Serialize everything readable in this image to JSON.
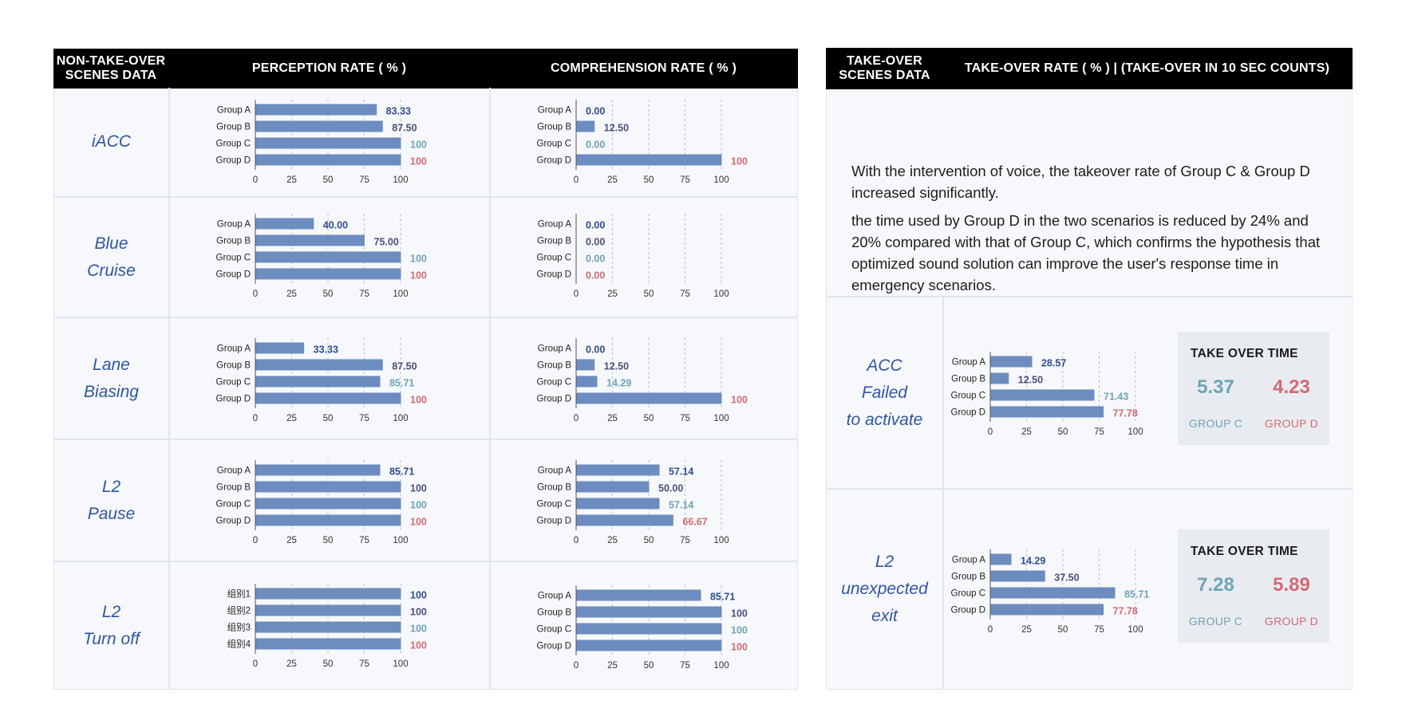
{
  "colors": {
    "bar": "#6d8cc0",
    "group_a_label": "#2f4c8c",
    "group_b_label": "#4a4e7a",
    "group_c_label": "#6fa3b5",
    "group_d_label": "#d36a73",
    "row_label": "#2f55a4",
    "header_bg": "#000000",
    "panel_bg": "#f6f8fb"
  },
  "left_header": {
    "scenes_label": "NON-TAKE-OVER\nSCENES DATA",
    "perception_label": "PERCEPTION RATE ( % )",
    "comprehension_label": "COMPREHENSION RATE ( % )"
  },
  "right_header": {
    "scenes_label": "TAKE-OVER\nSCENES DATA",
    "takeover_label": "TAKE-OVER RATE ( % ) | (TAKE-OVER IN 10 SEC COUNTS)"
  },
  "rows": [
    {
      "label_lines": [
        "iACC"
      ]
    },
    {
      "label_lines": [
        "Blue",
        "Cruise"
      ]
    },
    {
      "label_lines": [
        "Lane",
        "Biasing"
      ]
    },
    {
      "label_lines": [
        "L2",
        "Pause"
      ]
    },
    {
      "label_lines": [
        "L2",
        "Turn off"
      ]
    }
  ],
  "takeover_rows": [
    {
      "label_lines": [
        "ACC",
        "Failed",
        "to activate"
      ],
      "take_over_time": {
        "title": "TAKE OVER TIME",
        "group_c_value": "5.37",
        "group_d_value": "4.23",
        "group_c_label": "GROUP C",
        "group_d_label": "GROUP D"
      }
    },
    {
      "label_lines": [
        "L2",
        "unexpected",
        "exit"
      ],
      "take_over_time": {
        "title": "TAKE OVER TIME",
        "group_c_value": "7.28",
        "group_d_value": "5.89",
        "group_c_label": "GROUP C",
        "group_d_label": "GROUP D"
      }
    }
  ],
  "note": {
    "paragraph_1": "With the intervention of voice, the takeover rate of Group C & Group D increased significantly.",
    "paragraph_2": "the time used by Group D in the two scenarios is reduced by 24% and 20% compared with that of Group C, which confirms the hypothesis that optimized sound solution can improve the user's response time in emergency scenarios."
  },
  "chart_data": [
    {
      "id": "perception_iacc",
      "type": "bar",
      "orientation": "horizontal",
      "categories": [
        "Group A",
        "Group B",
        "Group C",
        "Group D"
      ],
      "values": [
        83.33,
        87.5,
        100,
        100
      ],
      "value_labels": [
        "83.33",
        "87.50",
        "100",
        "100"
      ],
      "xlim": [
        0,
        100
      ],
      "xticks": [
        "0",
        "25",
        "50",
        "75",
        "100"
      ],
      "grid": true
    },
    {
      "id": "comprehension_iacc",
      "type": "bar",
      "orientation": "horizontal",
      "categories": [
        "Group A",
        "Group B",
        "Group C",
        "Group D"
      ],
      "values": [
        0,
        12.5,
        0,
        100
      ],
      "value_labels": [
        "0.00",
        "12.50",
        "0.00",
        "100"
      ],
      "xlim": [
        0,
        100
      ],
      "xticks": [
        "0",
        "25",
        "50",
        "75",
        "100"
      ],
      "grid": true
    },
    {
      "id": "perception_blue_cruise",
      "type": "bar",
      "orientation": "horizontal",
      "categories": [
        "Group A",
        "Group B",
        "Group C",
        "Group D"
      ],
      "values": [
        40,
        75,
        100,
        100
      ],
      "value_labels": [
        "40.00",
        "75.00",
        "100",
        "100"
      ],
      "xlim": [
        0,
        100
      ],
      "xticks": [
        "0",
        "25",
        "50",
        "75",
        "100"
      ],
      "grid": true
    },
    {
      "id": "comprehension_blue_cruise",
      "type": "bar",
      "orientation": "horizontal",
      "categories": [
        "Group A",
        "Group B",
        "Group C",
        "Group D"
      ],
      "values": [
        0,
        0,
        0,
        0
      ],
      "value_labels": [
        "0.00",
        "0.00",
        "0.00",
        "0.00"
      ],
      "xlim": [
        0,
        100
      ],
      "xticks": [
        "0",
        "25",
        "50",
        "75",
        "100"
      ],
      "grid": true
    },
    {
      "id": "perception_lane_biasing",
      "type": "bar",
      "orientation": "horizontal",
      "categories": [
        "Group A",
        "Group B",
        "Group C",
        "Group D"
      ],
      "values": [
        33.33,
        87.5,
        85.71,
        100
      ],
      "value_labels": [
        "33.33",
        "87.50",
        "85.71",
        "100"
      ],
      "xlim": [
        0,
        100
      ],
      "xticks": [
        "0",
        "25",
        "50",
        "75",
        "100"
      ],
      "grid": true
    },
    {
      "id": "comprehension_lane_biasing",
      "type": "bar",
      "orientation": "horizontal",
      "categories": [
        "Group A",
        "Group B",
        "Group C",
        "Group D"
      ],
      "values": [
        0,
        12.5,
        14.29,
        100
      ],
      "value_labels": [
        "0.00",
        "12.50",
        "14.29",
        "100"
      ],
      "xlim": [
        0,
        100
      ],
      "xticks": [
        "0",
        "25",
        "50",
        "75",
        "100"
      ],
      "grid": true
    },
    {
      "id": "perception_l2_pause",
      "type": "bar",
      "orientation": "horizontal",
      "categories": [
        "Group A",
        "Group B",
        "Group C",
        "Group D"
      ],
      "values": [
        85.71,
        100,
        100,
        100
      ],
      "value_labels": [
        "85.71",
        "100",
        "100",
        "100"
      ],
      "xlim": [
        0,
        100
      ],
      "xticks": [
        "0",
        "25",
        "50",
        "75",
        "100"
      ],
      "grid": true
    },
    {
      "id": "comprehension_l2_pause",
      "type": "bar",
      "orientation": "horizontal",
      "categories": [
        "Group A",
        "Group B",
        "Group C",
        "Group D"
      ],
      "values": [
        57.14,
        50,
        57.14,
        66.67
      ],
      "value_labels": [
        "57.14",
        "50.00",
        "57.14",
        "66.67"
      ],
      "xlim": [
        0,
        100
      ],
      "xticks": [
        "0",
        "25",
        "50",
        "75",
        "100"
      ],
      "grid": true
    },
    {
      "id": "perception_l2_turn_off",
      "type": "bar",
      "orientation": "horizontal",
      "categories": [
        "组别1",
        "组别2",
        "组别3",
        "组别4"
      ],
      "values": [
        100,
        100,
        100,
        100
      ],
      "value_labels": [
        "100",
        "100",
        "100",
        "100"
      ],
      "xlim": [
        0,
        100
      ],
      "xticks": [
        "0",
        "25",
        "50",
        "75",
        "100"
      ],
      "grid": true
    },
    {
      "id": "comprehension_l2_turn_off",
      "type": "bar",
      "orientation": "horizontal",
      "categories": [
        "Group A",
        "Group B",
        "Group C",
        "Group D"
      ],
      "values": [
        85.71,
        100,
        100,
        100
      ],
      "value_labels": [
        "85.71",
        "100",
        "100",
        "100"
      ],
      "xlim": [
        0,
        100
      ],
      "xticks": [
        "0",
        "25",
        "50",
        "75",
        "100"
      ],
      "grid": true
    },
    {
      "id": "takeover_acc_failed",
      "type": "bar",
      "orientation": "horizontal",
      "categories": [
        "Group A",
        "Group B",
        "Group C",
        "Group D"
      ],
      "values": [
        28.57,
        12.5,
        71.43,
        77.78
      ],
      "value_labels": [
        "28.57",
        "12.50",
        "71.43",
        "77.78"
      ],
      "xlim": [
        0,
        100
      ],
      "xticks": [
        "0",
        "25",
        "50",
        "75",
        "100"
      ],
      "grid": true
    },
    {
      "id": "takeover_l2_unexpected_exit",
      "type": "bar",
      "orientation": "horizontal",
      "categories": [
        "Group A",
        "Group B",
        "Group C",
        "Group D"
      ],
      "values": [
        14.29,
        37.5,
        85.71,
        77.78
      ],
      "value_labels": [
        "14.29",
        "37.50",
        "85.71",
        "77.78"
      ],
      "xlim": [
        0,
        100
      ],
      "xticks": [
        "0",
        "25",
        "50",
        "75",
        "100"
      ],
      "grid": true
    }
  ]
}
